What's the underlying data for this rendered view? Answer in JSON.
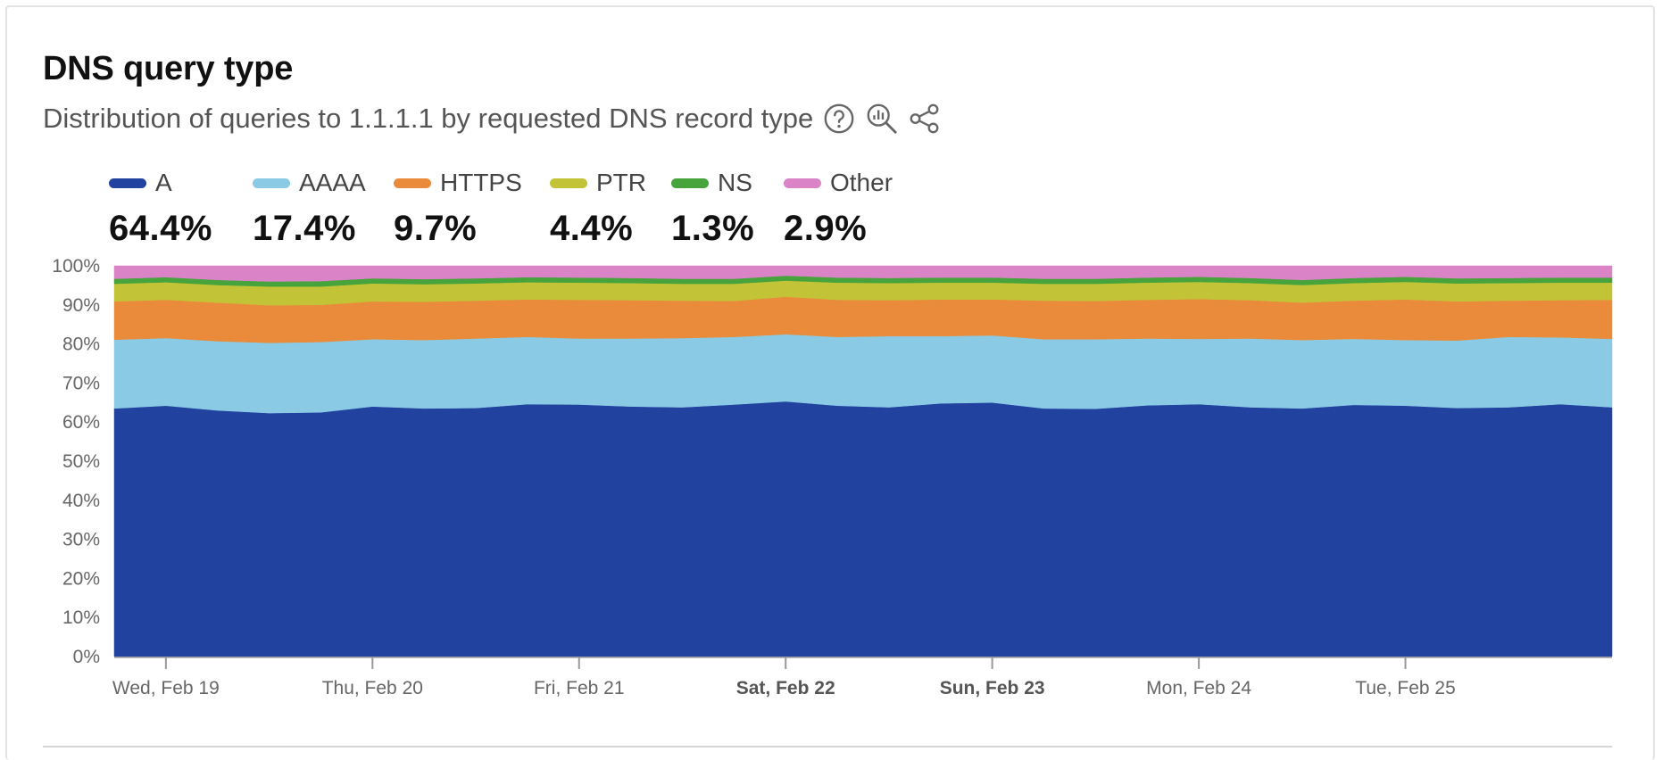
{
  "header": {
    "title": "DNS query type",
    "subtitle": "Distribution of queries to 1.1.1.1 by requested DNS record type",
    "icons": [
      "help-circle-icon",
      "chart-zoom-icon",
      "share-icon"
    ]
  },
  "chart_data": {
    "type": "area",
    "stacked": true,
    "normalized": true,
    "y_unit": "%",
    "ylim": [
      0,
      100
    ],
    "y_ticks": [
      "0%",
      "10%",
      "20%",
      "30%",
      "40%",
      "50%",
      "60%",
      "70%",
      "80%",
      "90%",
      "100%"
    ],
    "x_range": [
      "2025-02-19T00:00",
      "2025-02-26T00:00"
    ],
    "x_ticks": [
      {
        "label": "Wed, Feb 19",
        "date": "2025-02-19T00:00",
        "bold": false
      },
      {
        "label": "Thu, Feb 20",
        "date": "2025-02-20T00:00",
        "bold": false
      },
      {
        "label": "Fri, Feb 21",
        "date": "2025-02-21T00:00",
        "bold": false
      },
      {
        "label": "Sat, Feb 22",
        "date": "2025-02-22T00:00",
        "bold": true
      },
      {
        "label": "Sun, Feb 23",
        "date": "2025-02-23T00:00",
        "bold": true
      },
      {
        "label": "Mon, Feb 24",
        "date": "2025-02-24T00:00",
        "bold": false
      },
      {
        "label": "Tue, Feb 25",
        "date": "2025-02-25T00:00",
        "bold": false
      }
    ],
    "x": [
      "2025-02-18T18:00",
      "2025-02-19T00:00",
      "2025-02-19T06:00",
      "2025-02-19T12:00",
      "2025-02-19T18:00",
      "2025-02-20T00:00",
      "2025-02-20T06:00",
      "2025-02-20T12:00",
      "2025-02-20T18:00",
      "2025-02-21T00:00",
      "2025-02-21T06:00",
      "2025-02-21T12:00",
      "2025-02-21T18:00",
      "2025-02-22T00:00",
      "2025-02-22T06:00",
      "2025-02-22T12:00",
      "2025-02-22T18:00",
      "2025-02-23T00:00",
      "2025-02-23T06:00",
      "2025-02-23T12:00",
      "2025-02-23T18:00",
      "2025-02-24T00:00",
      "2025-02-24T06:00",
      "2025-02-24T12:00",
      "2025-02-24T18:00",
      "2025-02-25T00:00",
      "2025-02-25T06:00",
      "2025-02-25T12:00",
      "2025-02-25T18:00",
      "2025-02-26T00:00"
    ],
    "series": [
      {
        "name": "A",
        "summary": "64.4%",
        "color": "#2242a0",
        "values": [
          63.5,
          64.2,
          63.0,
          62.3,
          62.5,
          64.0,
          63.5,
          63.6,
          64.6,
          64.5,
          64.0,
          63.8,
          64.5,
          65.3,
          64.2,
          63.8,
          64.8,
          65.0,
          63.5,
          63.4,
          64.3,
          64.6,
          63.8,
          63.5,
          64.4,
          64.2,
          63.6,
          63.8,
          64.6,
          63.8
        ]
      },
      {
        "name": "AAAA",
        "summary": "17.4%",
        "color": "#8bcae4",
        "values": [
          17.6,
          17.3,
          17.7,
          18.0,
          18.0,
          17.2,
          17.5,
          17.8,
          17.2,
          16.9,
          17.4,
          17.7,
          17.3,
          17.2,
          17.6,
          18.2,
          17.2,
          17.2,
          17.7,
          17.8,
          17.1,
          16.7,
          17.6,
          17.5,
          16.9,
          16.8,
          17.3,
          18.0,
          17.1,
          17.5
        ]
      },
      {
        "name": "HTTPS",
        "summary": "9.7%",
        "color": "#e98b3a",
        "values": [
          9.8,
          9.8,
          9.9,
          9.6,
          9.5,
          9.7,
          9.8,
          9.7,
          9.6,
          9.9,
          9.8,
          9.6,
          9.2,
          9.6,
          9.5,
          9.2,
          9.4,
          9.2,
          9.9,
          9.8,
          9.9,
          10.2,
          9.8,
          9.6,
          9.8,
          10.4,
          10.0,
          9.3,
          9.5,
          10.0
        ]
      },
      {
        "name": "PTR",
        "summary": "4.4%",
        "color": "#c3c338",
        "values": [
          4.5,
          4.5,
          4.5,
          4.8,
          4.7,
          4.6,
          4.5,
          4.4,
          4.4,
          4.4,
          4.4,
          4.3,
          4.4,
          4.1,
          4.4,
          4.4,
          4.3,
          4.3,
          4.3,
          4.4,
          4.4,
          4.4,
          4.4,
          4.5,
          4.5,
          4.5,
          4.6,
          4.5,
          4.5,
          4.4
        ]
      },
      {
        "name": "NS",
        "summary": "1.3%",
        "color": "#47a33c",
        "values": [
          1.3,
          1.3,
          1.3,
          1.3,
          1.4,
          1.3,
          1.3,
          1.3,
          1.3,
          1.3,
          1.3,
          1.3,
          1.3,
          1.3,
          1.3,
          1.3,
          1.3,
          1.3,
          1.3,
          1.3,
          1.3,
          1.3,
          1.3,
          1.3,
          1.3,
          1.3,
          1.3,
          1.3,
          1.3,
          1.3
        ]
      },
      {
        "name": "Other",
        "summary": "2.9%",
        "color": "#db83c7",
        "values": [
          3.3,
          2.9,
          3.6,
          4.0,
          3.9,
          3.2,
          3.4,
          3.2,
          2.9,
          3.0,
          3.1,
          3.3,
          3.3,
          2.5,
          3.0,
          3.1,
          3.0,
          3.0,
          3.3,
          3.3,
          3.0,
          2.8,
          3.1,
          3.6,
          3.1,
          2.8,
          3.2,
          3.1,
          3.0,
          3.0
        ]
      }
    ]
  }
}
